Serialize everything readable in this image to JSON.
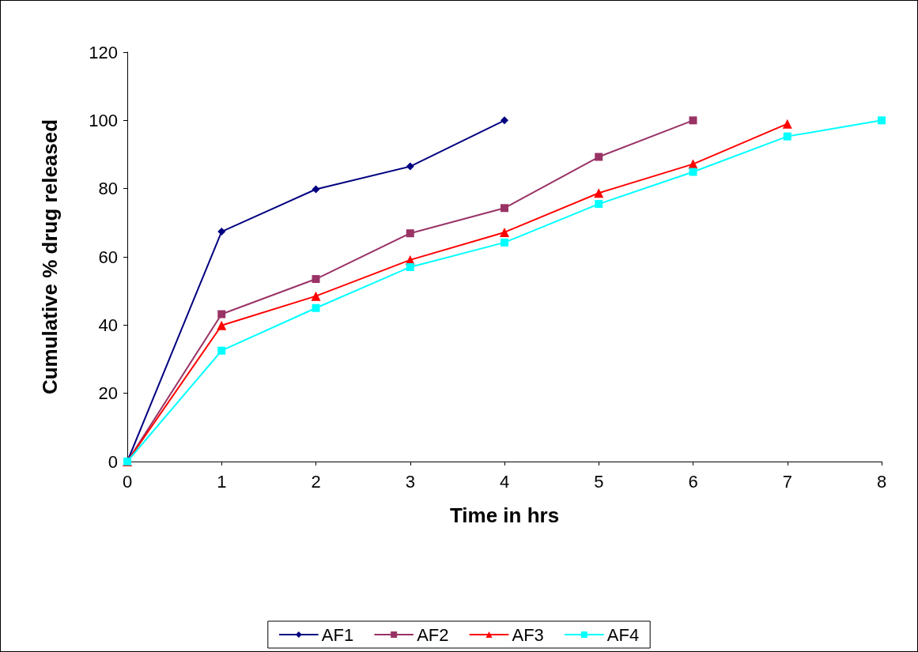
{
  "chart_data": {
    "type": "line",
    "xlabel": "Time in hrs",
    "ylabel": "Cumulative % drug released",
    "x": [
      0,
      1,
      2,
      3,
      4,
      5,
      6,
      7,
      8
    ],
    "series": [
      {
        "name": "AF1",
        "color": "#000080",
        "marker": "diamond",
        "values": [
          0,
          67.4,
          79.8,
          86.5,
          100,
          null,
          null,
          null,
          null
        ]
      },
      {
        "name": "AF2",
        "color": "#993366",
        "marker": "square",
        "values": [
          0,
          43.2,
          53.5,
          66.9,
          74.3,
          89.3,
          100,
          null,
          null
        ]
      },
      {
        "name": "AF3",
        "color": "#ff0000",
        "marker": "triangle",
        "values": [
          0,
          39.9,
          48.5,
          59.1,
          67.2,
          78.7,
          87.2,
          99,
          null
        ]
      },
      {
        "name": "AF4",
        "color": "#00ffff",
        "marker": "square",
        "values": [
          0,
          32.5,
          45,
          57,
          64.2,
          75.5,
          84.9,
          95.3,
          100
        ]
      }
    ],
    "xlim": [
      0,
      8
    ],
    "xticks": [
      0,
      1,
      2,
      3,
      4,
      5,
      6,
      7,
      8
    ],
    "ylim": [
      0,
      120
    ],
    "yticks": [
      0,
      20,
      40,
      60,
      80,
      100,
      120
    ],
    "grid": false,
    "legend": "bottom",
    "line_style": "solid"
  }
}
